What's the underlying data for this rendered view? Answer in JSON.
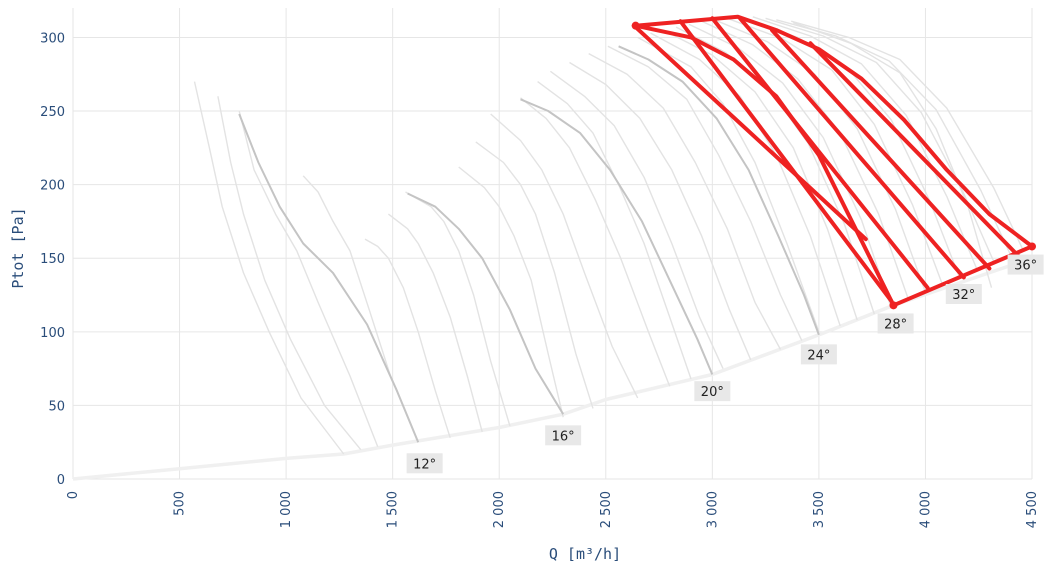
{
  "chart_data": {
    "type": "line",
    "xlabel": "Q [m³/h]",
    "ylabel": "Ptot [Pa]",
    "xlim": [
      0,
      4500
    ],
    "ylim": [
      0,
      320
    ],
    "x_ticks": [
      0,
      500,
      1000,
      1500,
      2000,
      2500,
      3000,
      3500,
      4000,
      4500
    ],
    "x_tick_labels": [
      "0",
      "500",
      "1 000",
      "1 500",
      "2 000",
      "2 500",
      "3 000",
      "3 500",
      "4 000",
      "4 500"
    ],
    "y_ticks": [
      0,
      50,
      100,
      150,
      200,
      250,
      300
    ],
    "y_tick_labels": [
      "0",
      "50",
      "100",
      "150",
      "200",
      "250",
      "300"
    ],
    "grid": true,
    "colors": {
      "grid": "#e6e6e6",
      "curve_light": "#e3e3e3",
      "curve_main": "#c4c4c4",
      "system_curve": "#f0f0f0",
      "operating_region": "#ee2222",
      "tick_text": "#2a4d7a",
      "label_bg": "#e8e8e8"
    },
    "system_curve": {
      "x": [
        0,
        500,
        1000,
        1270,
        1500,
        2000,
        2300,
        2500,
        3000,
        3500,
        3850,
        4500
      ],
      "y": [
        0,
        7,
        14,
        17,
        23,
        35,
        44,
        54,
        71,
        98,
        118,
        150
      ]
    },
    "fan_curves": [
      {
        "x": [
          570,
          640,
          700,
          800,
          920,
          1070,
          1270
        ],
        "y": [
          270,
          225,
          185,
          140,
          100,
          55,
          17
        ]
      },
      {
        "x": [
          680,
          740,
          800,
          900,
          1020,
          1180,
          1350
        ],
        "y": [
          260,
          215,
          180,
          135,
          95,
          50,
          20
        ]
      },
      {
        "x": [
          780,
          850,
          950,
          1050,
          1150,
          1300,
          1430
        ],
        "y": [
          250,
          210,
          180,
          155,
          120,
          70,
          22
        ]
      },
      {
        "x": [
          1080,
          1150,
          1220,
          1300,
          1390,
          1490,
          1620
        ],
        "y": [
          206,
          195,
          175,
          155,
          115,
          70,
          25
        ]
      },
      {
        "x": [
          1370,
          1430,
          1480,
          1550,
          1620,
          1700,
          1770
        ],
        "y": [
          163,
          158,
          150,
          130,
          100,
          60,
          28
        ]
      },
      {
        "x": [
          1480,
          1570,
          1620,
          1690,
          1770,
          1850,
          1920
        ],
        "y": [
          180,
          170,
          160,
          140,
          110,
          70,
          32
        ]
      },
      {
        "x": [
          1560,
          1680,
          1740,
          1810,
          1880,
          1960,
          2050
        ],
        "y": [
          195,
          185,
          175,
          155,
          125,
          80,
          36
        ]
      },
      {
        "x": [
          1810,
          1930,
          2000,
          2070,
          2150,
          2230,
          2300
        ],
        "y": [
          212,
          198,
          185,
          165,
          135,
          85,
          42
        ]
      },
      {
        "x": [
          1890,
          2020,
          2100,
          2170,
          2260,
          2360,
          2440
        ],
        "y": [
          229,
          215,
          200,
          180,
          140,
          85,
          48
        ]
      },
      {
        "x": [
          1960,
          2100,
          2200,
          2300,
          2400,
          2530,
          2650
        ],
        "y": [
          248,
          230,
          210,
          180,
          140,
          90,
          55
        ]
      },
      {
        "x": [
          2100,
          2220,
          2330,
          2450,
          2570,
          2700,
          2800
        ],
        "y": [
          259,
          245,
          225,
          190,
          150,
          100,
          63
        ]
      },
      {
        "x": [
          2180,
          2320,
          2440,
          2560,
          2680,
          2800,
          2900
        ],
        "y": [
          270,
          255,
          235,
          200,
          160,
          110,
          68
        ]
      },
      {
        "x": [
          2240,
          2400,
          2540,
          2680,
          2810,
          2940,
          3050
        ],
        "y": [
          277,
          260,
          240,
          205,
          160,
          110,
          75
        ]
      },
      {
        "x": [
          2330,
          2500,
          2660,
          2810,
          2950,
          3080,
          3180
        ],
        "y": [
          283,
          268,
          245,
          210,
          165,
          115,
          81
        ]
      },
      {
        "x": [
          2420,
          2600,
          2770,
          2920,
          3070,
          3200,
          3320
        ],
        "y": [
          289,
          275,
          252,
          215,
          170,
          120,
          88
        ]
      },
      {
        "x": [
          2510,
          2700,
          2880,
          3030,
          3180,
          3320,
          3420
        ],
        "y": [
          294,
          280,
          258,
          220,
          175,
          125,
          94
        ]
      },
      {
        "x": [
          2650,
          2900,
          3050,
          3200,
          3350,
          3500
        ],
        "y": [
          300,
          280,
          255,
          215,
          160,
          100
        ]
      },
      {
        "x": [
          2710,
          2940,
          3130,
          3300,
          3460,
          3600
        ],
        "y": [
          303,
          285,
          260,
          220,
          165,
          104
        ]
      },
      {
        "x": [
          2770,
          3000,
          3200,
          3380,
          3540,
          3680
        ],
        "y": [
          305,
          288,
          263,
          225,
          170,
          108
        ]
      },
      {
        "x": [
          2830,
          3060,
          3260,
          3450,
          3620,
          3760
        ],
        "y": [
          307,
          290,
          266,
          228,
          173,
          112
        ]
      },
      {
        "x": [
          2890,
          3120,
          3330,
          3520,
          3700,
          3840
        ],
        "y": [
          309,
          293,
          269,
          232,
          176,
          116
        ]
      },
      {
        "x": [
          2950,
          3190,
          3400,
          3600,
          3780,
          3920
        ],
        "y": [
          311,
          295,
          272,
          235,
          180,
          122
        ]
      },
      {
        "x": [
          3010,
          3260,
          3480,
          3680,
          3860,
          4000
        ],
        "y": [
          312,
          297,
          275,
          238,
          183,
          127
        ]
      },
      {
        "x": [
          3070,
          3330,
          3560,
          3760,
          3940,
          4080
        ],
        "y": [
          313,
          299,
          278,
          241,
          186,
          132
        ]
      },
      {
        "x": [
          3130,
          3400,
          3630,
          3840,
          4020,
          4160
        ],
        "y": [
          314,
          300,
          280,
          244,
          189,
          137
        ]
      },
      {
        "x": [
          3190,
          3460,
          3700,
          3910,
          4100,
          4240
        ],
        "y": [
          314,
          301,
          282,
          247,
          192,
          143
        ]
      },
      {
        "x": [
          3250,
          3520,
          3770,
          3980,
          4180,
          4320
        ],
        "y": [
          313,
          301,
          283,
          249,
          194,
          148
        ]
      },
      {
        "x": [
          3300,
          3580,
          3830,
          4050,
          4260,
          4400
        ],
        "y": [
          312,
          301,
          284,
          251,
          196,
          152
        ]
      },
      {
        "x": [
          3370,
          3640,
          3880,
          4100,
          4320,
          4460
        ],
        "y": [
          311,
          300,
          285,
          252,
          198,
          155
        ]
      },
      {
        "x": [
          3380,
          3650,
          3880,
          4050,
          4200,
          4310
        ],
        "y": [
          310,
          296,
          276,
          238,
          185,
          130
        ]
      }
    ],
    "main_curves": [
      {
        "label": "12°",
        "x": [
          780,
          870,
          970,
          1080,
          1220,
          1380,
          1520,
          1620
        ],
        "y": [
          248,
          215,
          185,
          160,
          140,
          105,
          60,
          25
        ],
        "label_anchor": [
          1620,
          20
        ]
      },
      {
        "label": "16°",
        "x": [
          1570,
          1700,
          1810,
          1920,
          2050,
          2170,
          2300
        ],
        "y": [
          194,
          185,
          170,
          150,
          115,
          75,
          44
        ],
        "label_anchor": [
          2300,
          38
        ]
      },
      {
        "label": "20°",
        "x": [
          2100,
          2230,
          2380,
          2520,
          2670,
          2800,
          2930,
          3000
        ],
        "y": [
          258,
          250,
          235,
          210,
          175,
          135,
          95,
          71
        ],
        "label_anchor": [
          3010,
          65
        ]
      },
      {
        "label": "24°",
        "x": [
          2560,
          2700,
          2860,
          3020,
          3170,
          3310,
          3430,
          3500
        ],
        "y": [
          294,
          285,
          270,
          245,
          210,
          165,
          125,
          98
        ],
        "label_anchor": [
          3520,
          92
        ]
      }
    ],
    "operating_region": {
      "outline_x": [
        2640,
        3120,
        3300,
        3500,
        3700,
        3900,
        4100,
        4300,
        4500,
        3850,
        3700,
        3500,
        3300,
        3100,
        2900,
        2640
      ],
      "outline_y": [
        308,
        314,
        305,
        292,
        272,
        244,
        210,
        180,
        158,
        118,
        162,
        220,
        260,
        285,
        300,
        308
      ],
      "stripes": [
        {
          "x": [
            2640,
            3720
          ],
          "y": [
            307,
            163
          ]
        },
        {
          "x": [
            2850,
            3840
          ],
          "y": [
            311,
            121
          ]
        },
        {
          "x": [
            3000,
            4010
          ],
          "y": [
            313,
            130
          ]
        },
        {
          "x": [
            3130,
            4180
          ],
          "y": [
            313,
            137
          ]
        },
        {
          "x": [
            3280,
            4300
          ],
          "y": [
            305,
            143
          ]
        },
        {
          "x": [
            3460,
            4440
          ],
          "y": [
            296,
            151
          ]
        }
      ]
    },
    "angle_labels": [
      {
        "text": "12°",
        "x": 1650,
        "y": 10
      },
      {
        "text": "16°",
        "x": 2300,
        "y": 29
      },
      {
        "text": "20°",
        "x": 3000,
        "y": 59
      },
      {
        "text": "24°",
        "x": 3500,
        "y": 84
      },
      {
        "text": "28°",
        "x": 3860,
        "y": 105
      },
      {
        "text": "32°",
        "x": 4180,
        "y": 125
      },
      {
        "text": "36°",
        "x": 4470,
        "y": 145
      }
    ]
  }
}
